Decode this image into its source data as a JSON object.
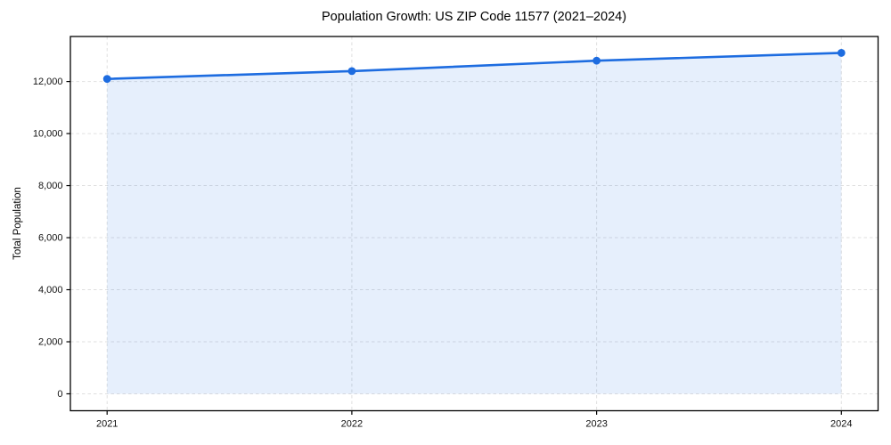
{
  "chart_data": {
    "type": "area",
    "title": "Population Growth: US ZIP Code 11577 (2021–2024)",
    "xlabel": "",
    "ylabel": "Total Population",
    "categories": [
      "2021",
      "2022",
      "2023",
      "2024"
    ],
    "x": [
      2021,
      2022,
      2023,
      2024
    ],
    "series": [
      {
        "name": "Total Population",
        "values": [
          12100,
          12400,
          12800,
          13100
        ]
      }
    ],
    "y_ticks": [
      0,
      2000,
      4000,
      6000,
      8000,
      10000,
      12000
    ],
    "y_tick_labels": [
      "0",
      "2,000",
      "4,000",
      "6,000",
      "8,000",
      "10,000",
      "12,000"
    ],
    "xlim": [
      2020.85,
      2024.15
    ],
    "ylim": [
      -650,
      13730
    ],
    "grid": true,
    "grid_style": "dashed",
    "legend_position": "none",
    "colors": {
      "line": "#1d6ce0",
      "marker": "#1d6ce0",
      "fill": "#1d6ce0",
      "fill_opacity": 0.11,
      "grid": "#cfcfcf",
      "axis": "#000000",
      "tick_text": "#111111",
      "background": "#ffffff"
    }
  }
}
